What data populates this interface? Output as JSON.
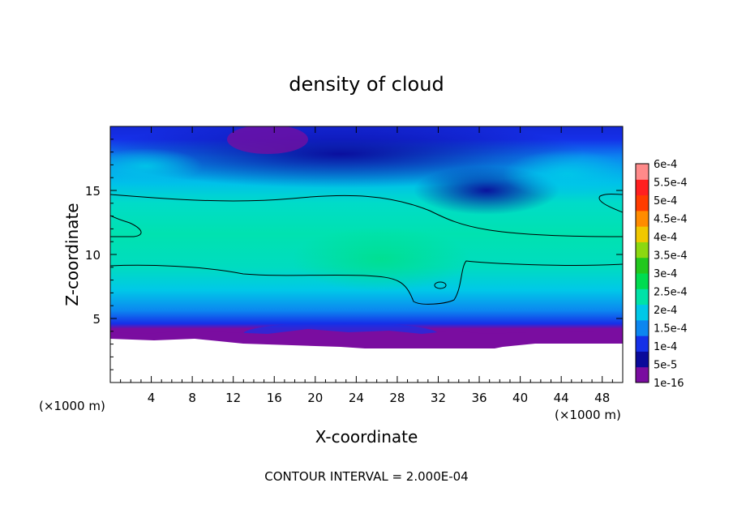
{
  "chart_data": {
    "type": "heatmap",
    "title": "density of cloud",
    "xlabel": "X-coordinate",
    "ylabel": "Z-coordinate",
    "x_unit": "(×1000 m)",
    "z_unit": "(×1000 m)",
    "xlim": [
      0,
      50
    ],
    "ylim": [
      0,
      20
    ],
    "xticks": [
      4,
      8,
      12,
      16,
      20,
      24,
      28,
      32,
      36,
      40,
      44,
      48
    ],
    "yticks": [
      5,
      10,
      15
    ],
    "footer": "CONTOUR INTERVAL = 2.000E-04",
    "colorbar": {
      "labels": [
        "1e-16",
        "5e-5",
        "1e-4",
        "1.5e-4",
        "2e-4",
        "2.5e-4",
        "3e-4",
        "3.5e-4",
        "4e-4",
        "4.5e-4",
        "5e-4",
        "5.5e-4",
        "6e-4"
      ],
      "colors": [
        "#7a0da0",
        "#0a0a9a",
        "#1530e8",
        "#0c86f0",
        "#00c8e8",
        "#00e2a8",
        "#00dc50",
        "#22c81e",
        "#8cd810",
        "#f0c800",
        "#ff8c00",
        "#ff3c00",
        "#ff2020",
        "#ff8a8a"
      ]
    },
    "contour_level": "2e-4",
    "notes_field": {
      "bands": [
        {
          "z_range": [
            3,
            4.2
          ],
          "value": "1e-16",
          "description": "near-surface purple layer above terrain"
        },
        {
          "z_range": [
            4.2,
            6
          ],
          "value": "1e-4"
        },
        {
          "z_range": [
            6,
            9
          ],
          "value": "2e-4"
        },
        {
          "z_range": [
            9,
            14
          ],
          "value": "2.2e-4"
        },
        {
          "z_range": [
            14,
            18
          ],
          "value": "1.5e-4"
        },
        {
          "z_range": [
            18,
            20
          ],
          "value": "5e-5"
        }
      ]
    }
  }
}
